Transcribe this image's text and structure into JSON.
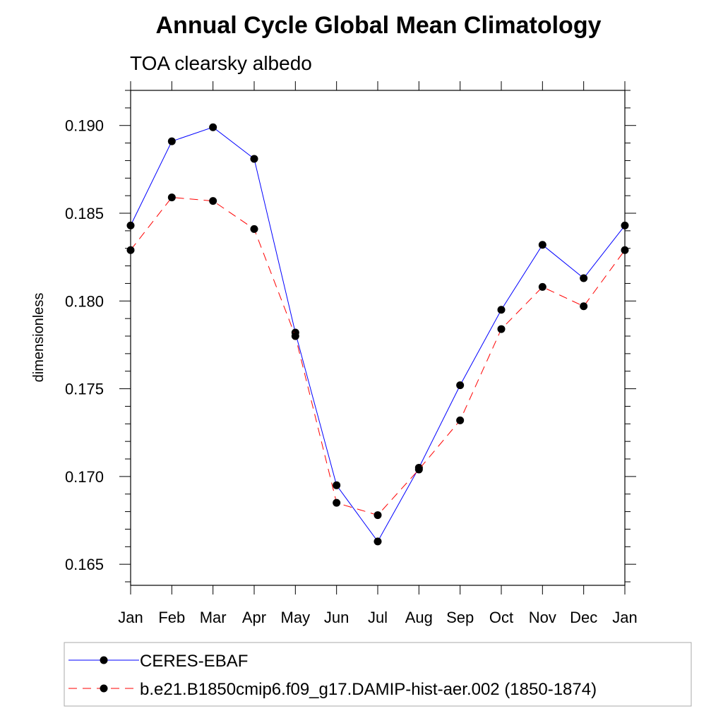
{
  "chart_data": {
    "type": "line",
    "title": "Annual Cycle Global Mean Climatology",
    "subtitle": "TOA clearsky albedo",
    "xlabel": "",
    "ylabel": "dimensionless",
    "categories": [
      "Jan",
      "Feb",
      "Mar",
      "Apr",
      "May",
      "Jun",
      "Jul",
      "Aug",
      "Sep",
      "Oct",
      "Nov",
      "Dec",
      "Jan"
    ],
    "ylim": [
      0.1638,
      0.192
    ],
    "yticks": [
      "0.165",
      "0.170",
      "0.175",
      "0.180",
      "0.185",
      "0.190"
    ],
    "ytick_values": [
      0.165,
      0.17,
      0.175,
      0.18,
      0.185,
      0.19
    ],
    "grid": false,
    "legend_position": "bottom",
    "series": [
      {
        "name": "CERES-EBAF",
        "color": "#0000ff",
        "line_style": "solid",
        "marker": "filled-circle",
        "values": [
          0.1843,
          0.1891,
          0.1899,
          0.1881,
          0.1782,
          0.1695,
          0.1663,
          0.1705,
          0.1752,
          0.1795,
          0.1832,
          0.1813,
          0.1843
        ]
      },
      {
        "name": "b.e21.B1850cmip6.f09_g17.DAMIP-hist-aer.002 (1850-1874)",
        "color": "#ff0000",
        "line_style": "dashed",
        "marker": "filled-circle",
        "values": [
          0.1829,
          0.1859,
          0.1857,
          0.1841,
          0.178,
          0.1685,
          0.1678,
          0.1704,
          0.1732,
          0.1784,
          0.1808,
          0.1797,
          0.1829
        ]
      }
    ]
  }
}
